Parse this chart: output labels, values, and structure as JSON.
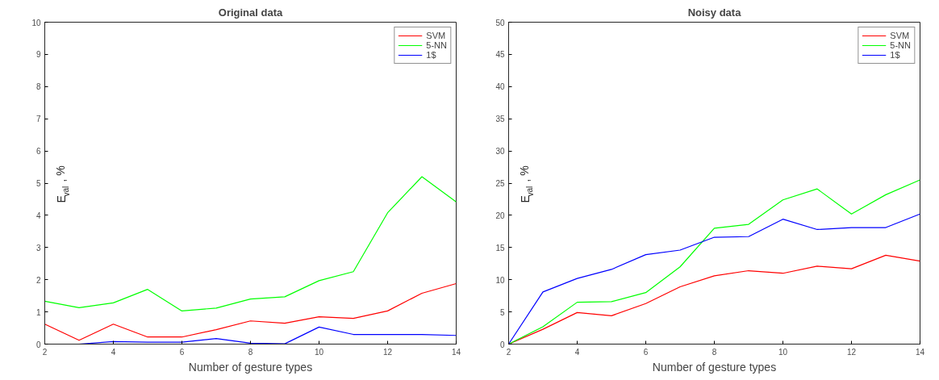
{
  "chart_data": [
    {
      "type": "line",
      "title": "Original data",
      "xlabel": "Number of gesture types",
      "ylabel": "E$_{val}$, %",
      "x": [
        2,
        3,
        4,
        5,
        6,
        7,
        8,
        9,
        10,
        11,
        12,
        13,
        14
      ],
      "series": [
        {
          "name": "SVM",
          "color": "#ff0000",
          "values": [
            0.62,
            0.12,
            0.62,
            0.22,
            0.22,
            0.45,
            0.72,
            0.65,
            0.85,
            0.8,
            1.03,
            1.58,
            1.88
          ]
        },
        {
          "name": "5-NN",
          "color": "#00ff00",
          "values": [
            1.33,
            1.13,
            1.28,
            1.7,
            1.03,
            1.12,
            1.4,
            1.47,
            1.97,
            2.25,
            4.08,
            5.2,
            4.42
          ]
        },
        {
          "name": "1$",
          "color": "#0000ff",
          "values": [
            0,
            0,
            0.08,
            0.06,
            0.06,
            0.17,
            0.03,
            0.01,
            0.53,
            0.3,
            0.3,
            0.3,
            0.27
          ]
        }
      ],
      "xlim": [
        2,
        14
      ],
      "xticks": [
        2,
        4,
        6,
        8,
        10,
        12,
        14
      ],
      "ylim": [
        0,
        10
      ],
      "yticks": [
        0,
        1,
        2,
        3,
        4,
        5,
        6,
        7,
        8,
        9,
        10
      ],
      "grid": false,
      "legend": "top right",
      "marker": "none",
      "line_style": "solid"
    },
    {
      "type": "line",
      "title": "Noisy data",
      "xlabel": "Number of gesture types",
      "ylabel": "E$_{val}$, %",
      "x": [
        2,
        3,
        4,
        5,
        6,
        7,
        8,
        9,
        10,
        11,
        12,
        13,
        14
      ],
      "series": [
        {
          "name": "SVM",
          "color": "#ff0000",
          "values": [
            0,
            2.3,
            4.9,
            4.4,
            6.3,
            8.9,
            10.6,
            11.4,
            11.0,
            12.1,
            11.7,
            13.8,
            12.9
          ]
        },
        {
          "name": "5-NN",
          "color": "#00ff00",
          "values": [
            0,
            2.7,
            6.5,
            6.6,
            8.0,
            12.0,
            18.0,
            18.6,
            22.4,
            24.1,
            20.2,
            23.2,
            25.5
          ]
        },
        {
          "name": "1$",
          "color": "#0000ff",
          "values": [
            0,
            8.1,
            10.2,
            11.6,
            13.9,
            14.6,
            16.6,
            16.7,
            19.4,
            17.8,
            18.1,
            18.1,
            20.2
          ]
        }
      ],
      "xlim": [
        2,
        14
      ],
      "xticks": [
        2,
        4,
        6,
        8,
        10,
        12,
        14
      ],
      "ylim": [
        0,
        50
      ],
      "yticks": [
        0,
        5,
        10,
        15,
        20,
        25,
        30,
        35,
        40,
        45,
        50
      ],
      "grid": false,
      "legend": "top right",
      "marker": "none",
      "line_style": "solid"
    }
  ]
}
